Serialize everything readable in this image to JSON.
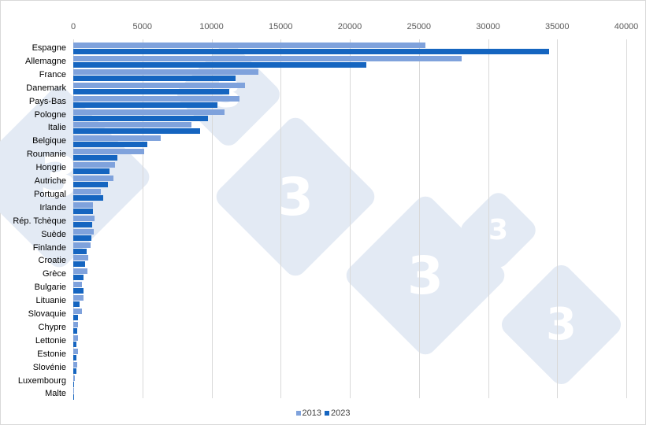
{
  "chart_data": {
    "type": "bar",
    "orientation": "horizontal",
    "title": "",
    "xlabel": "",
    "ylabel": "",
    "xlim": [
      0,
      40000
    ],
    "x_ticks": [
      "0",
      "5000",
      "10000",
      "15000",
      "20000",
      "25000",
      "30000",
      "35000",
      "40000"
    ],
    "grid": true,
    "legend_position": "bottom",
    "categories": [
      "Espagne",
      "Allemagne",
      "France",
      "Danemark",
      "Pays-Bas",
      "Pologne",
      "Italie",
      "Belgique",
      "Roumanie",
      "Hongrie",
      "Autriche",
      "Portugal",
      "Irlande",
      "Rép. Tchèque",
      "Suède",
      "Finlande",
      "Croatie",
      "Grèce",
      "Bulgarie",
      "Lituanie",
      "Slovaquie",
      "Chypre",
      "Lettonie",
      "Estonie",
      "Slovénie",
      "Luxembourg",
      "Malte"
    ],
    "series": [
      {
        "name": "2013",
        "color": "#7fa2dc",
        "values": [
          25470,
          28100,
          13400,
          12400,
          12000,
          10950,
          8550,
          6300,
          5150,
          3000,
          2900,
          2000,
          1450,
          1550,
          1500,
          1250,
          1100,
          1050,
          600,
          750,
          650,
          350,
          350,
          350,
          300,
          100,
          60
        ]
      },
      {
        "name": "2023",
        "color": "#1565c0",
        "values": [
          34400,
          21200,
          11750,
          11300,
          10450,
          9750,
          9150,
          5350,
          3200,
          2600,
          2500,
          2150,
          1400,
          1350,
          1300,
          950,
          850,
          750,
          750,
          450,
          350,
          300,
          250,
          250,
          200,
          80,
          40
        ]
      }
    ]
  },
  "legend": {
    "items": [
      {
        "label": "2013",
        "color": "#7fa2dc"
      },
      {
        "label": "2023",
        "color": "#1565c0"
      }
    ]
  },
  "watermark": {
    "glyph": "3"
  }
}
